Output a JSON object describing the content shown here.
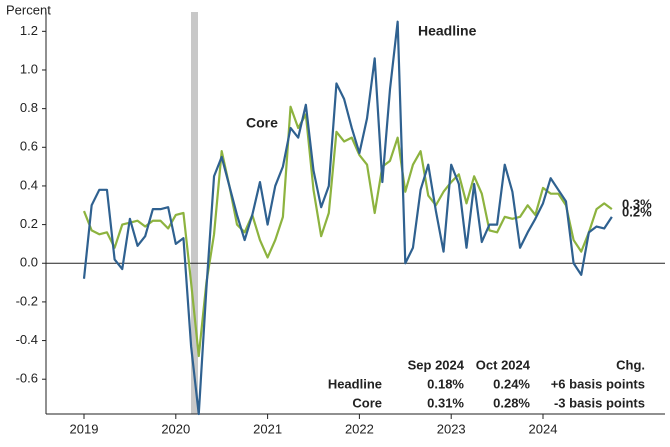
{
  "chart_data": {
    "type": "line",
    "y_label": "Percent",
    "categories": [
      "2019",
      null,
      null,
      null,
      null,
      null,
      null,
      null,
      null,
      null,
      null,
      null,
      "2020",
      null,
      null,
      null,
      null,
      null,
      null,
      null,
      null,
      null,
      null,
      null,
      "2021",
      null,
      null,
      null,
      null,
      null,
      null,
      null,
      null,
      null,
      null,
      null,
      "2022",
      null,
      null,
      null,
      null,
      null,
      null,
      null,
      null,
      null,
      null,
      null,
      "2023",
      null,
      null,
      null,
      null,
      null,
      null,
      null,
      null,
      null,
      null,
      null,
      "2024",
      null,
      null,
      null,
      null,
      null,
      null,
      null,
      null,
      null
    ],
    "series": [
      {
        "name": "Headline",
        "color": "#2f6190",
        "end_label": "0.2%",
        "values": [
          -0.08,
          0.3,
          0.38,
          0.38,
          0.02,
          -0.03,
          0.23,
          0.09,
          0.14,
          0.28,
          0.28,
          0.29,
          0.1,
          0.13,
          -0.43,
          -0.78,
          -0.13,
          0.45,
          0.55,
          0.4,
          0.25,
          0.12,
          0.25,
          0.42,
          0.2,
          0.4,
          0.5,
          0.7,
          0.65,
          0.82,
          0.48,
          0.29,
          0.4,
          0.93,
          0.85,
          0.7,
          0.57,
          0.75,
          1.06,
          0.42,
          0.9,
          1.25,
          0.0,
          0.08,
          0.38,
          0.51,
          0.27,
          0.06,
          0.51,
          0.41,
          0.08,
          0.41,
          0.11,
          0.2,
          0.2,
          0.51,
          0.37,
          0.08,
          0.16,
          0.23,
          0.31,
          0.44,
          0.38,
          0.32,
          0.0,
          -0.06,
          0.16,
          0.19,
          0.18,
          0.24
        ]
      },
      {
        "name": "Core",
        "color": "#8db33f",
        "end_label": "0.3%",
        "values": [
          0.27,
          0.17,
          0.15,
          0.16,
          0.08,
          0.2,
          0.21,
          0.22,
          0.19,
          0.22,
          0.22,
          0.18,
          0.25,
          0.26,
          -0.1,
          -0.48,
          -0.1,
          0.15,
          0.58,
          0.4,
          0.2,
          0.16,
          0.25,
          0.12,
          0.03,
          0.12,
          0.24,
          0.81,
          0.7,
          0.77,
          0.38,
          0.14,
          0.26,
          0.68,
          0.63,
          0.65,
          0.56,
          0.51,
          0.26,
          0.5,
          0.53,
          0.65,
          0.37,
          0.51,
          0.58,
          0.35,
          0.3,
          0.37,
          0.42,
          0.46,
          0.31,
          0.45,
          0.36,
          0.17,
          0.16,
          0.24,
          0.23,
          0.24,
          0.3,
          0.25,
          0.39,
          0.36,
          0.36,
          0.3,
          0.12,
          0.06,
          0.16,
          0.28,
          0.31,
          0.28
        ]
      }
    ],
    "ylim": [
      -0.78,
      1.3
    ],
    "yticks": [
      -0.6,
      -0.4,
      -0.2,
      {
        "value": 0,
        "label": "0.0"
      },
      0.2,
      0.4,
      0.6,
      0.8,
      {
        "value": 1,
        "label": "1.0"
      },
      1.2
    ],
    "grid": false,
    "table": {
      "columns": [
        "Sep 2024",
        "Oct 2024",
        "Chg."
      ],
      "rows": [
        [
          "Headline",
          "0.18%",
          "0.24%",
          "+6 basis points"
        ],
        [
          "Core",
          "0.31%",
          "0.28%",
          "-3 basis points"
        ]
      ]
    }
  }
}
